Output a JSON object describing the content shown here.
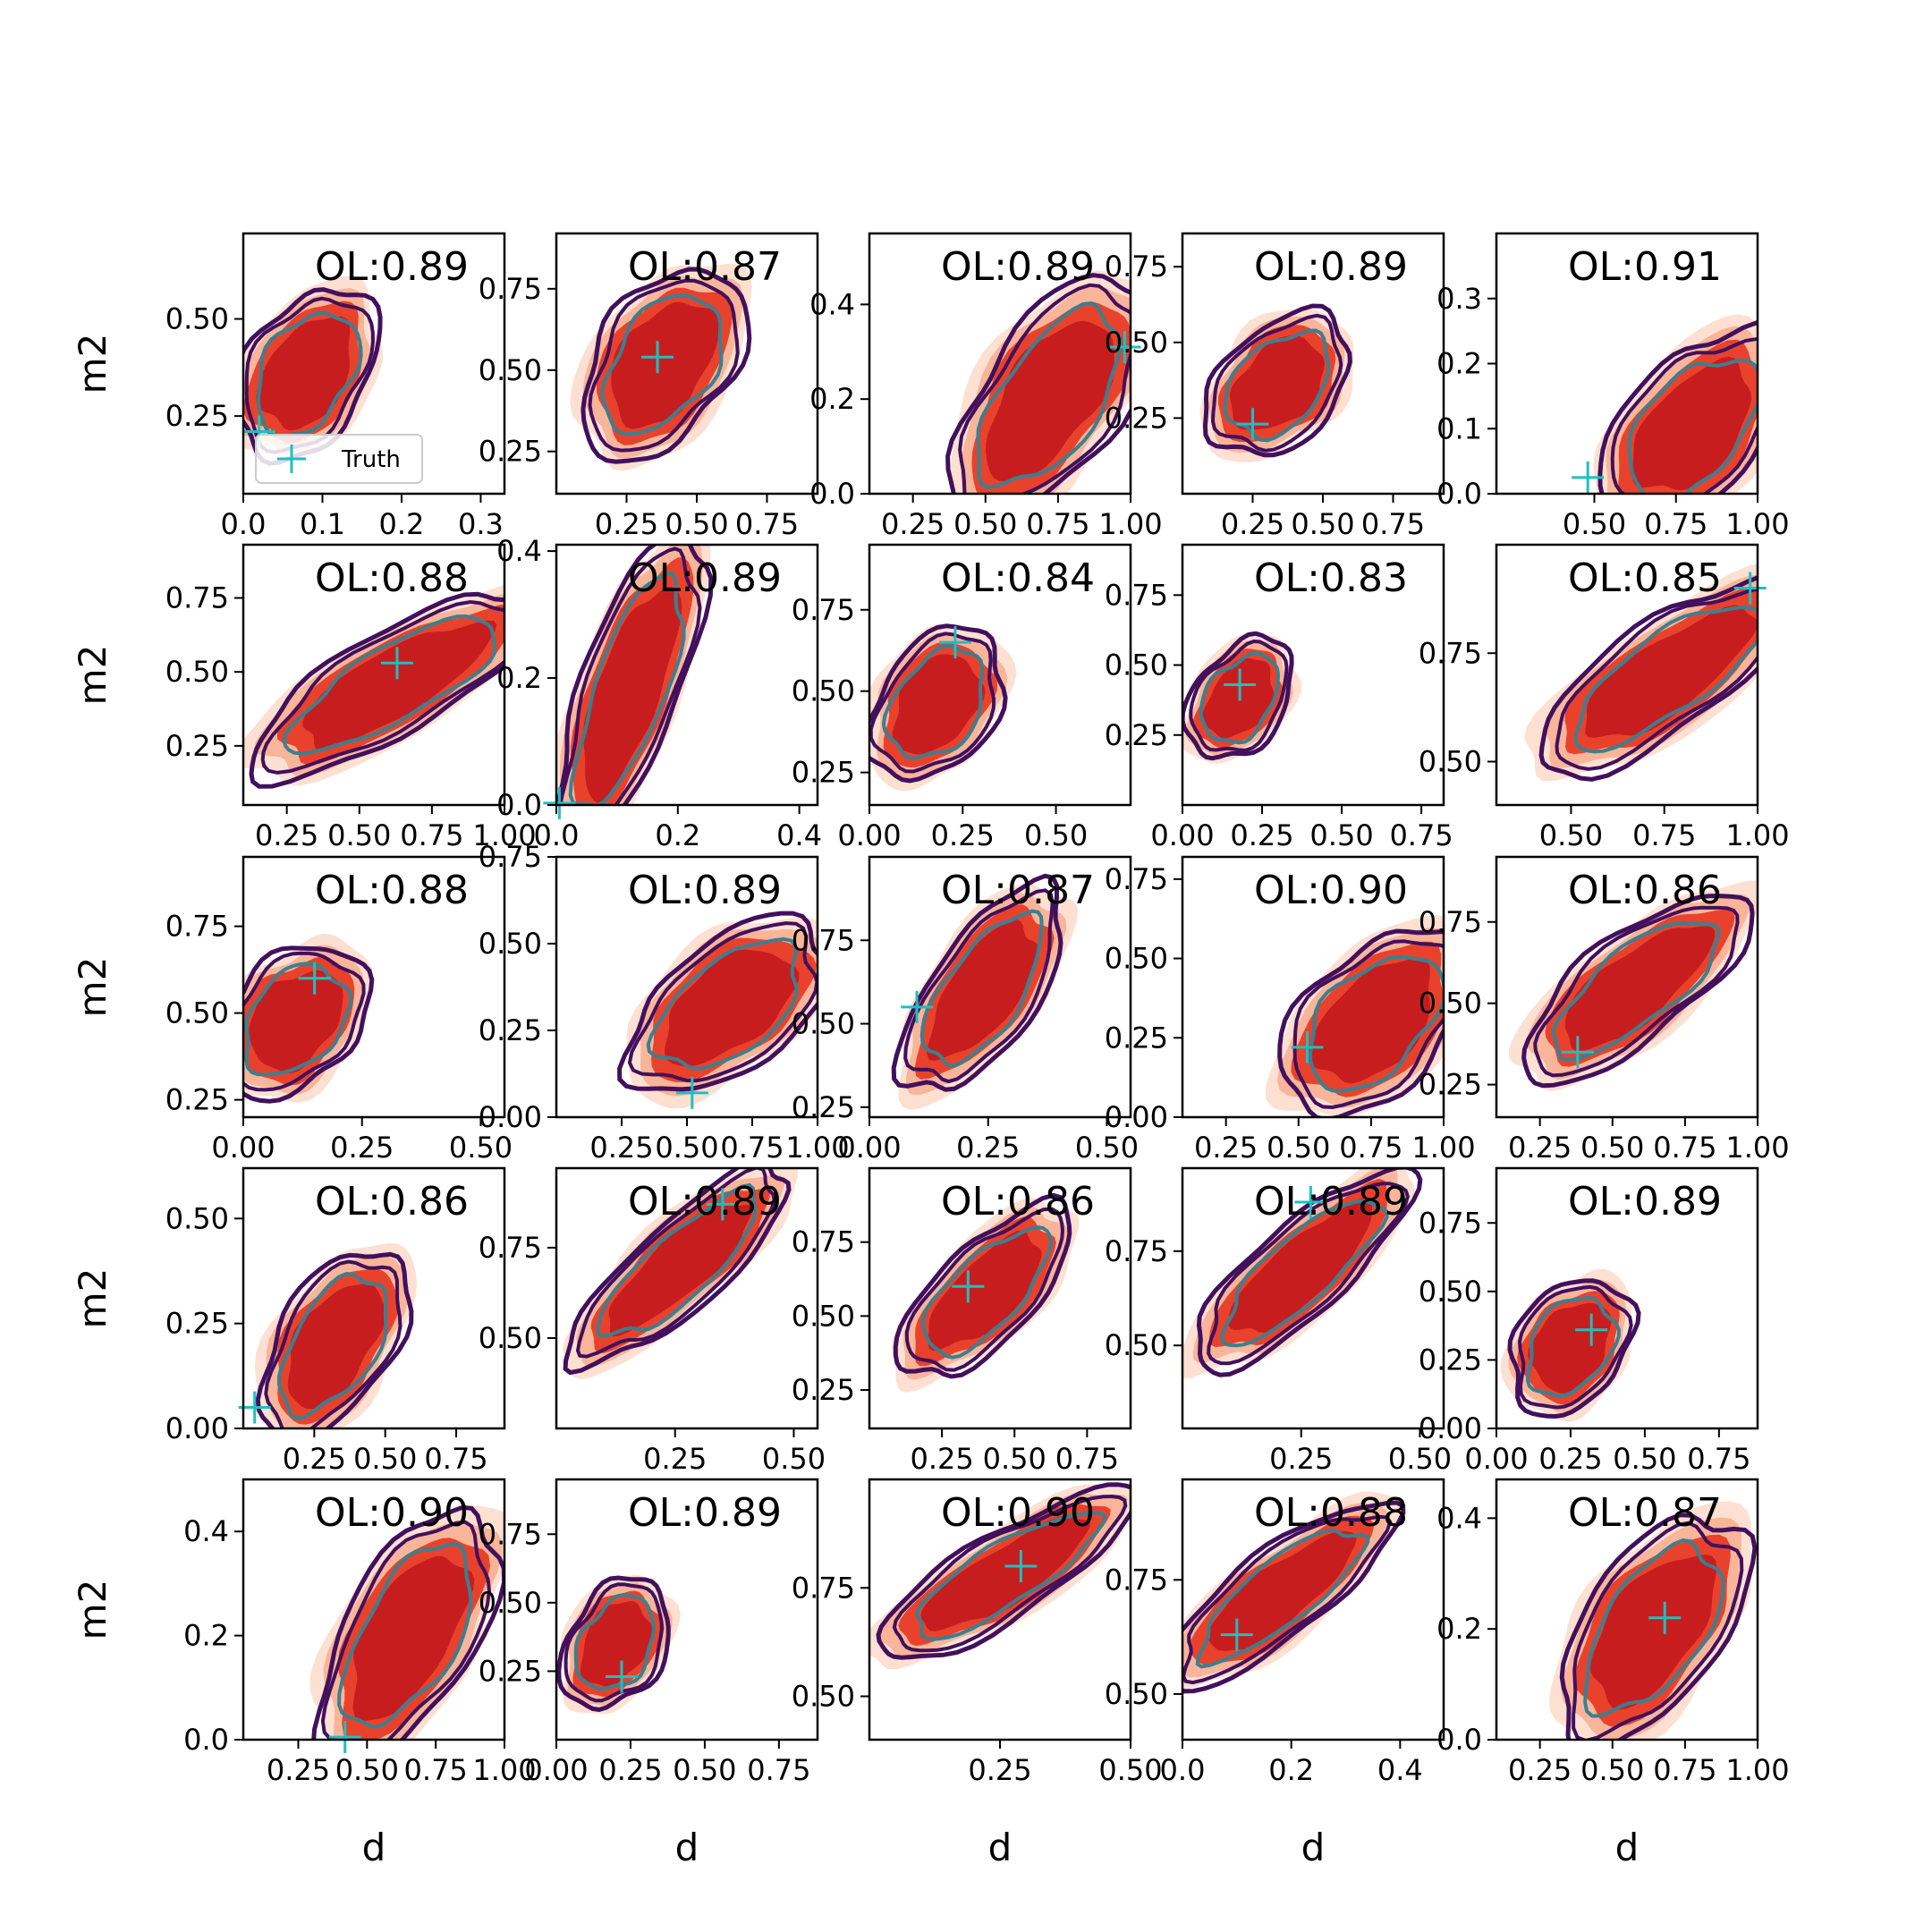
{
  "figure": {
    "xlabel": "d",
    "ylabel": "m2",
    "legend_label": "Truth"
  },
  "colors": {
    "fill_levels": [
      "#fde0d2",
      "#f8b59a",
      "#e8422d",
      "#c81d1f"
    ],
    "contour_outer": "#42105c",
    "contour_inner": "#3a8090",
    "truth_marker": "#1fbfc0"
  },
  "chart_data": [
    {
      "type": "contour",
      "title": "OL:0.89",
      "row": 0,
      "col": 0,
      "xlim": [
        0.0,
        0.33
      ],
      "ylim": [
        0.05,
        0.72
      ],
      "xticks": [
        "0.0",
        "0.1",
        "0.2",
        "0.3"
      ],
      "xtick_values": [
        0,
        0.1,
        0.2,
        0.3
      ],
      "yticks": [
        "0.25",
        "0.50"
      ],
      "ytick_values": [
        0.25,
        0.5
      ],
      "truth": [
        0.02,
        0.21
      ],
      "center": [
        0.08,
        0.36
      ],
      "spread": [
        0.07,
        0.16
      ],
      "angle": 58,
      "legend": true
    },
    {
      "type": "contour",
      "title": "OL:0.87",
      "row": 0,
      "col": 1,
      "xlim": [
        0.0,
        0.93
      ],
      "ylim": [
        0.12,
        0.92
      ],
      "xticks": [
        "0.25",
        "0.50",
        "0.75"
      ],
      "xtick_values": [
        0.25,
        0.5,
        0.75
      ],
      "yticks": [
        "0.25",
        "0.50",
        "0.75"
      ],
      "ytick_values": [
        0.25,
        0.5,
        0.75
      ],
      "truth": [
        0.36,
        0.54
      ],
      "center": [
        0.38,
        0.52
      ],
      "spread": [
        0.22,
        0.22
      ],
      "angle": 55
    },
    {
      "type": "contour",
      "title": "OL:0.89",
      "row": 0,
      "col": 2,
      "xlim": [
        0.1,
        1.0
      ],
      "ylim": [
        0.0,
        0.55
      ],
      "xticks": [
        "0.25",
        "0.50",
        "0.75",
        "1.00"
      ],
      "xtick_values": [
        0.25,
        0.5,
        0.75,
        1.0
      ],
      "yticks": [
        "0.0",
        "0.2",
        "0.4"
      ],
      "ytick_values": [
        0,
        0.2,
        0.4
      ],
      "truth": [
        0.98,
        0.31
      ],
      "center": [
        0.72,
        0.2
      ],
      "spread": [
        0.22,
        0.2
      ],
      "angle": 55
    },
    {
      "type": "contour",
      "title": "OL:0.89",
      "row": 0,
      "col": 3,
      "xlim": [
        0.0,
        0.93
      ],
      "ylim": [
        0.0,
        0.86
      ],
      "xticks": [
        "0.25",
        "0.50",
        "0.75"
      ],
      "xtick_values": [
        0.25,
        0.5,
        0.75
      ],
      "yticks": [
        "0.25",
        "0.50",
        "0.75"
      ],
      "ytick_values": [
        0.25,
        0.5,
        0.75
      ],
      "truth": [
        0.25,
        0.23
      ],
      "center": [
        0.34,
        0.36
      ],
      "spread": [
        0.2,
        0.17
      ],
      "angle": 45
    },
    {
      "type": "contour",
      "title": "OL:0.91",
      "row": 0,
      "col": 4,
      "xlim": [
        0.2,
        1.0
      ],
      "ylim": [
        0.0,
        0.4
      ],
      "xticks": [
        "0.50",
        "0.75",
        "1.00"
      ],
      "xtick_values": [
        0.5,
        0.75,
        1.0
      ],
      "yticks": [
        "0.0",
        "0.1",
        "0.2",
        "0.3"
      ],
      "ytick_values": [
        0,
        0.1,
        0.2,
        0.3
      ],
      "truth": [
        0.48,
        0.025
      ],
      "center": [
        0.8,
        0.1
      ],
      "spread": [
        0.19,
        0.12
      ],
      "angle": 50
    },
    {
      "type": "contour",
      "title": "OL:0.88",
      "row": 1,
      "col": 0,
      "xlim": [
        0.1,
        1.0
      ],
      "ylim": [
        0.05,
        0.93
      ],
      "xticks": [
        "0.25",
        "0.50",
        "0.75",
        "1.00"
      ],
      "xtick_values": [
        0.25,
        0.5,
        0.75,
        1.0
      ],
      "yticks": [
        "0.25",
        "0.50",
        "0.75"
      ],
      "ytick_values": [
        0.25,
        0.5,
        0.75
      ],
      "truth": [
        0.63,
        0.53
      ],
      "center": [
        0.62,
        0.46
      ],
      "spread": [
        0.38,
        0.15
      ],
      "angle": 30
    },
    {
      "type": "contour",
      "title": "OL:0.89",
      "row": 1,
      "col": 1,
      "xlim": [
        0.0,
        0.43
      ],
      "ylim": [
        0.0,
        0.41
      ],
      "xticks": [
        "0.0",
        "0.2",
        "0.4"
      ],
      "xtick_values": [
        0,
        0.2,
        0.4
      ],
      "yticks": [
        "0.0",
        "0.2",
        "0.4"
      ],
      "ytick_values": [
        0,
        0.2,
        0.4
      ],
      "truth": [
        0.005,
        0.003
      ],
      "center": [
        0.12,
        0.18
      ],
      "spread": [
        0.07,
        0.18
      ],
      "angle": 70
    },
    {
      "type": "contour",
      "title": "OL:0.84",
      "row": 1,
      "col": 2,
      "xlim": [
        0.0,
        0.7
      ],
      "ylim": [
        0.15,
        0.95
      ],
      "xticks": [
        "0.00",
        "0.25",
        "0.50"
      ],
      "xtick_values": [
        0,
        0.25,
        0.5
      ],
      "yticks": [
        "0.25",
        "0.50",
        "0.75"
      ],
      "ytick_values": [
        0.25,
        0.5,
        0.75
      ],
      "truth": [
        0.23,
        0.65
      ],
      "center": [
        0.18,
        0.46
      ],
      "spread": [
        0.15,
        0.16
      ],
      "angle": 55
    },
    {
      "type": "contour",
      "title": "OL:0.83",
      "row": 1,
      "col": 3,
      "xlim": [
        0.0,
        0.82
      ],
      "ylim": [
        0.0,
        0.93
      ],
      "xticks": [
        "0.00",
        "0.25",
        "0.50",
        "0.75"
      ],
      "xtick_values": [
        0,
        0.25,
        0.5,
        0.75
      ],
      "yticks": [
        "0.25",
        "0.50",
        "0.75"
      ],
      "ytick_values": [
        0.25,
        0.5,
        0.75
      ],
      "truth": [
        0.18,
        0.43
      ],
      "center": [
        0.18,
        0.38
      ],
      "spread": [
        0.12,
        0.16
      ],
      "angle": 55
    },
    {
      "type": "contour",
      "title": "OL:0.85",
      "row": 1,
      "col": 4,
      "xlim": [
        0.3,
        1.0
      ],
      "ylim": [
        0.4,
        1.0
      ],
      "xticks": [
        "0.50",
        "0.75",
        "1.00"
      ],
      "xtick_values": [
        0.5,
        0.75,
        1.0
      ],
      "yticks": [
        "0.50",
        "0.75"
      ],
      "ytick_values": [
        0.5,
        0.75
      ],
      "truth": [
        0.98,
        0.9
      ],
      "center": [
        0.76,
        0.7
      ],
      "spread": [
        0.28,
        0.11
      ],
      "angle": 35
    },
    {
      "type": "contour",
      "title": "OL:0.88",
      "row": 2,
      "col": 0,
      "xlim": [
        0.0,
        0.55
      ],
      "ylim": [
        0.2,
        0.95
      ],
      "xticks": [
        "0.00",
        "0.25",
        "0.50"
      ],
      "xtick_values": [
        0,
        0.25,
        0.5
      ],
      "yticks": [
        "0.25",
        "0.50",
        "0.75"
      ],
      "ytick_values": [
        0.25,
        0.5,
        0.75
      ],
      "truth": [
        0.15,
        0.6
      ],
      "center": [
        0.11,
        0.48
      ],
      "spread": [
        0.12,
        0.16
      ],
      "angle": 50
    },
    {
      "type": "contour",
      "title": "OL:0.89",
      "row": 2,
      "col": 1,
      "xlim": [
        0.0,
        1.0
      ],
      "ylim": [
        0.0,
        0.75
      ],
      "xticks": [
        "0.25",
        "0.50",
        "0.75",
        "1.00"
      ],
      "xtick_values": [
        0.25,
        0.5,
        0.75,
        1.0
      ],
      "yticks": [
        "0.00",
        "0.25",
        "0.50",
        "0.75"
      ],
      "ytick_values": [
        0,
        0.25,
        0.5,
        0.75
      ],
      "truth": [
        0.52,
        0.07
      ],
      "center": [
        0.66,
        0.32
      ],
      "spread": [
        0.3,
        0.17
      ],
      "angle": 38
    },
    {
      "type": "contour",
      "title": "OL:0.87",
      "row": 2,
      "col": 2,
      "xlim": [
        0.0,
        0.55
      ],
      "ylim": [
        0.22,
        1.0
      ],
      "xticks": [
        "0.00",
        "0.25",
        "0.50"
      ],
      "xtick_values": [
        0,
        0.25,
        0.5
      ],
      "yticks": [
        "0.25",
        "0.50",
        "0.75"
      ],
      "ytick_values": [
        0.25,
        0.5,
        0.75
      ],
      "truth": [
        0.1,
        0.55
      ],
      "center": [
        0.24,
        0.6
      ],
      "spread": [
        0.17,
        0.14
      ],
      "angle": 55
    },
    {
      "type": "contour",
      "title": "OL:0.90",
      "row": 2,
      "col": 3,
      "xlim": [
        0.1,
        1.0
      ],
      "ylim": [
        0.0,
        0.82
      ],
      "xticks": [
        "0.25",
        "0.50",
        "0.75",
        "1.00"
      ],
      "xtick_values": [
        0.25,
        0.5,
        0.75,
        1.0
      ],
      "yticks": [
        "0.00",
        "0.25",
        "0.50",
        "0.75"
      ],
      "ytick_values": [
        0,
        0.25,
        0.5,
        0.75
      ],
      "truth": [
        0.53,
        0.22
      ],
      "center": [
        0.76,
        0.3
      ],
      "spread": [
        0.26,
        0.2
      ],
      "angle": 45
    },
    {
      "type": "contour",
      "title": "OL:0.86",
      "row": 2,
      "col": 4,
      "xlim": [
        0.1,
        1.0
      ],
      "ylim": [
        0.15,
        0.95
      ],
      "xticks": [
        "0.25",
        "0.50",
        "0.75",
        "1.00"
      ],
      "xtick_values": [
        0.25,
        0.5,
        0.75,
        1.0
      ],
      "yticks": [
        "0.25",
        "0.50",
        "0.75"
      ],
      "ytick_values": [
        0.25,
        0.5,
        0.75
      ],
      "truth": [
        0.38,
        0.35
      ],
      "center": [
        0.58,
        0.55
      ],
      "spread": [
        0.32,
        0.14
      ],
      "angle": 38
    },
    {
      "type": "contour",
      "title": "OL:0.86",
      "row": 3,
      "col": 0,
      "xlim": [
        0.0,
        0.92
      ],
      "ylim": [
        0.0,
        0.62
      ],
      "xticks": [
        "0.25",
        "0.50",
        "0.75"
      ],
      "xtick_values": [
        0.25,
        0.5,
        0.75
      ],
      "yticks": [
        "0.00",
        "0.25",
        "0.50"
      ],
      "ytick_values": [
        0,
        0.25,
        0.5
      ],
      "truth": [
        0.04,
        0.05
      ],
      "center": [
        0.32,
        0.2
      ],
      "spread": [
        0.18,
        0.17
      ],
      "angle": 58
    },
    {
      "type": "contour",
      "title": "OL:0.89",
      "row": 3,
      "col": 1,
      "xlim": [
        0.0,
        0.55
      ],
      "ylim": [
        0.25,
        0.97
      ],
      "xticks": [
        "0.25",
        "0.50"
      ],
      "xtick_values": [
        0.25,
        0.5
      ],
      "yticks": [
        "0.50",
        "0.75"
      ],
      "ytick_values": [
        0.5,
        0.75
      ],
      "truth": [
        0.35,
        0.87
      ],
      "center": [
        0.26,
        0.7
      ],
      "spread": [
        0.2,
        0.1
      ],
      "angle": 42
    },
    {
      "type": "contour",
      "title": "OL:0.86",
      "row": 3,
      "col": 2,
      "xlim": [
        0.0,
        0.9
      ],
      "ylim": [
        0.12,
        1.0
      ],
      "xticks": [
        "0.25",
        "0.50",
        "0.75"
      ],
      "xtick_values": [
        0.25,
        0.5,
        0.75
      ],
      "yticks": [
        "0.25",
        "0.50",
        "0.75"
      ],
      "ytick_values": [
        0.25,
        0.5,
        0.75
      ],
      "truth": [
        0.34,
        0.6
      ],
      "center": [
        0.4,
        0.58
      ],
      "spread": [
        0.26,
        0.14
      ],
      "angle": 45
    },
    {
      "type": "contour",
      "title": "OL:0.89",
      "row": 3,
      "col": 3,
      "xlim": [
        0.0,
        0.55
      ],
      "ylim": [
        0.28,
        0.97
      ],
      "xticks": [
        "0.25",
        "0.50"
      ],
      "xtick_values": [
        0.25,
        0.5
      ],
      "yticks": [
        "0.50",
        "0.75"
      ],
      "ytick_values": [
        0.5,
        0.75
      ],
      "truth": [
        0.27,
        0.88
      ],
      "center": [
        0.25,
        0.7
      ],
      "spread": [
        0.2,
        0.1
      ],
      "angle": 42
    },
    {
      "type": "contour",
      "title": "OL:0.89",
      "row": 3,
      "col": 4,
      "xlim": [
        0.0,
        0.88
      ],
      "ylim": [
        0.0,
        0.95
      ],
      "xticks": [
        "0.00",
        "0.25",
        "0.50",
        "0.75"
      ],
      "xtick_values": [
        0,
        0.25,
        0.5,
        0.75
      ],
      "yticks": [
        "0.00",
        "0.25",
        "0.50",
        "0.75"
      ],
      "ytick_values": [
        0,
        0.25,
        0.5,
        0.75
      ],
      "truth": [
        0.32,
        0.36
      ],
      "center": [
        0.25,
        0.3
      ],
      "spread": [
        0.16,
        0.18
      ],
      "angle": 55
    },
    {
      "type": "contour",
      "title": "OL:0.90",
      "row": 4,
      "col": 0,
      "xlim": [
        0.05,
        1.0
      ],
      "ylim": [
        0.0,
        0.5
      ],
      "xticks": [
        "0.25",
        "0.50",
        "0.75",
        "1.00"
      ],
      "xtick_values": [
        0.25,
        0.5,
        0.75,
        1.0
      ],
      "yticks": [
        "0.0",
        "0.2",
        "0.4"
      ],
      "ytick_values": [
        0,
        0.2,
        0.4
      ],
      "truth": [
        0.42,
        0.005
      ],
      "center": [
        0.65,
        0.2
      ],
      "spread": [
        0.22,
        0.18
      ],
      "angle": 60
    },
    {
      "type": "contour",
      "title": "OL:0.89",
      "row": 4,
      "col": 1,
      "xlim": [
        0.0,
        0.88
      ],
      "ylim": [
        0.0,
        0.95
      ],
      "xticks": [
        "0.00",
        "0.25",
        "0.50",
        "0.75"
      ],
      "xtick_values": [
        0,
        0.25,
        0.5,
        0.75
      ],
      "yticks": [
        "0.25",
        "0.50",
        "0.75"
      ],
      "ytick_values": [
        0.25,
        0.5,
        0.75
      ],
      "truth": [
        0.22,
        0.23
      ],
      "center": [
        0.2,
        0.35
      ],
      "spread": [
        0.14,
        0.17
      ],
      "angle": 60
    },
    {
      "type": "contour",
      "title": "OL:0.90",
      "row": 4,
      "col": 2,
      "xlim": [
        0.0,
        0.5
      ],
      "ylim": [
        0.4,
        1.0
      ],
      "xticks": [
        "0.25",
        "0.50"
      ],
      "xtick_values": [
        0.25,
        0.5
      ],
      "yticks": [
        "0.50",
        "0.75"
      ],
      "ytick_values": [
        0.5,
        0.75
      ],
      "truth": [
        0.29,
        0.8
      ],
      "center": [
        0.26,
        0.78
      ],
      "spread": [
        0.19,
        0.08
      ],
      "angle": 32
    },
    {
      "type": "contour",
      "title": "OL:0.88",
      "row": 4,
      "col": 3,
      "xlim": [
        0.0,
        0.48
      ],
      "ylim": [
        0.4,
        0.97
      ],
      "xticks": [
        "0.0",
        "0.2",
        "0.4"
      ],
      "xtick_values": [
        0,
        0.2,
        0.4
      ],
      "yticks": [
        "0.50",
        "0.75"
      ],
      "ytick_values": [
        0.5,
        0.75
      ],
      "truth": [
        0.1,
        0.63
      ],
      "center": [
        0.18,
        0.72
      ],
      "spread": [
        0.17,
        0.08
      ],
      "angle": 38
    },
    {
      "type": "contour",
      "title": "OL:0.87",
      "row": 4,
      "col": 4,
      "xlim": [
        0.1,
        1.0
      ],
      "ylim": [
        0.0,
        0.47
      ],
      "xticks": [
        "0.25",
        "0.50",
        "0.75",
        "1.00"
      ],
      "xtick_values": [
        0.25,
        0.5,
        0.75,
        1.0
      ],
      "yticks": [
        "0.0",
        "0.2",
        "0.4"
      ],
      "ytick_values": [
        0,
        0.2,
        0.4
      ],
      "truth": [
        0.68,
        0.22
      ],
      "center": [
        0.64,
        0.2
      ],
      "spread": [
        0.22,
        0.16
      ],
      "angle": 55
    }
  ]
}
